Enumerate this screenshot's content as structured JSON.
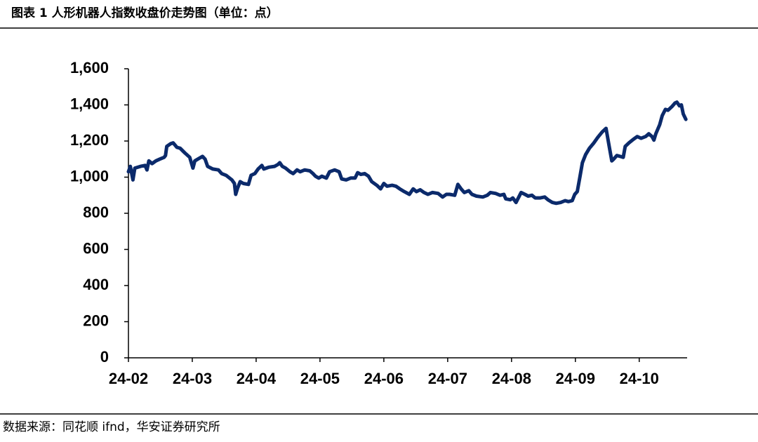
{
  "chart_data": {
    "type": "line",
    "title": "图表 1   人形机器人指数收盘价走势图（单位：点）",
    "source": "数据来源：同花顺 ifnd，华安证券研究所",
    "x": [
      0,
      0.03,
      0.07,
      0.1,
      0.19,
      0.26,
      0.29,
      0.32,
      0.37,
      0.43,
      0.49,
      0.56,
      0.58,
      0.6,
      0.66,
      0.7,
      0.76,
      0.81,
      0.88,
      0.96,
      1.01,
      1.04,
      1.11,
      1.16,
      1.2,
      1.24,
      1.32,
      1.41,
      1.46,
      1.53,
      1.62,
      1.66,
      1.68,
      1.71,
      1.75,
      1.8,
      1.88,
      1.92,
      1.98,
      2.03,
      2.09,
      2.12,
      2.2,
      2.29,
      2.34,
      2.37,
      2.41,
      2.46,
      2.53,
      2.58,
      2.64,
      2.69,
      2.76,
      2.84,
      2.89,
      2.93,
      2.98,
      3.03,
      3.1,
      3.15,
      3.23,
      3.3,
      3.34,
      3.41,
      3.48,
      3.55,
      3.59,
      3.64,
      3.7,
      3.76,
      3.81,
      3.89,
      3.95,
      4.0,
      4.05,
      4.13,
      4.19,
      4.25,
      4.32,
      4.4,
      4.46,
      4.51,
      4.57,
      4.63,
      4.69,
      4.76,
      4.85,
      4.92,
      4.98,
      5.03,
      5.11,
      5.16,
      5.21,
      5.26,
      5.33,
      5.38,
      5.45,
      5.55,
      5.62,
      5.67,
      5.75,
      5.82,
      5.88,
      5.91,
      5.98,
      6.02,
      6.07,
      6.1,
      6.15,
      6.21,
      6.26,
      6.32,
      6.37,
      6.45,
      6.52,
      6.57,
      6.64,
      6.7,
      6.77,
      6.84,
      6.89,
      6.95,
      6.99,
      7.03,
      7.07,
      7.11,
      7.16,
      7.22,
      7.29,
      7.35,
      7.42,
      7.48,
      7.53,
      7.57,
      7.6,
      7.65,
      7.7,
      7.75,
      7.78,
      7.84,
      7.91,
      7.97,
      8.03,
      8.1,
      8.15,
      8.2,
      8.23,
      8.26,
      8.32,
      8.36,
      8.41,
      8.45,
      8.51,
      8.56,
      8.59,
      8.63,
      8.66,
      8.69,
      8.73
    ],
    "series": [
      {
        "color": "#0b2a6b",
        "values": [
          1030,
          1060,
          985,
          1050,
          1060,
          1065,
          1040,
          1090,
          1075,
          1090,
          1100,
          1110,
          1120,
          1170,
          1185,
          1190,
          1165,
          1160,
          1135,
          1110,
          1050,
          1090,
          1105,
          1115,
          1100,
          1060,
          1045,
          1040,
          1020,
          1010,
          985,
          965,
          905,
          940,
          975,
          965,
          960,
          1010,
          1020,
          1045,
          1065,
          1045,
          1055,
          1060,
          1070,
          1080,
          1060,
          1050,
          1030,
          1020,
          1040,
          1030,
          1040,
          1035,
          1020,
          1005,
          995,
          1005,
          995,
          1030,
          1040,
          1030,
          990,
          985,
          995,
          995,
          1025,
          1015,
          1020,
          1005,
          975,
          955,
          935,
          965,
          950,
          955,
          950,
          935,
          920,
          905,
          935,
          920,
          930,
          915,
          905,
          915,
          910,
          890,
          905,
          905,
          900,
          960,
          935,
          915,
          925,
          905,
          895,
          890,
          900,
          915,
          910,
          900,
          905,
          880,
          875,
          885,
          860,
          880,
          915,
          905,
          895,
          900,
          885,
          885,
          890,
          875,
          860,
          855,
          860,
          870,
          865,
          870,
          905,
          920,
          1000,
          1080,
          1125,
          1160,
          1190,
          1220,
          1250,
          1270,
          1170,
          1090,
          1100,
          1120,
          1115,
          1110,
          1170,
          1190,
          1210,
          1225,
          1215,
          1225,
          1240,
          1225,
          1205,
          1240,
          1290,
          1340,
          1375,
          1370,
          1390,
          1410,
          1415,
          1395,
          1400,
          1350,
          1320
        ]
      }
    ],
    "xlim": [
      0,
      8.75
    ],
    "xticks": [
      {
        "value": 0,
        "label": "24-02"
      },
      {
        "value": 1,
        "label": "24-03"
      },
      {
        "value": 2,
        "label": "24-04"
      },
      {
        "value": 3,
        "label": "24-05"
      },
      {
        "value": 4,
        "label": "24-06"
      },
      {
        "value": 5,
        "label": "24-07"
      },
      {
        "value": 6,
        "label": "24-08"
      },
      {
        "value": 7,
        "label": "24-09"
      },
      {
        "value": 8,
        "label": "24-10"
      }
    ],
    "ylim": [
      0,
      1600
    ],
    "yticks": [
      0,
      200,
      400,
      600,
      800,
      {
        "value": 1000,
        "label": "1,000"
      },
      {
        "value": 1200,
        "label": "1,200"
      },
      {
        "value": 1400,
        "label": "1,400"
      },
      {
        "value": 1600,
        "label": "1,600"
      }
    ],
    "grid": false
  }
}
